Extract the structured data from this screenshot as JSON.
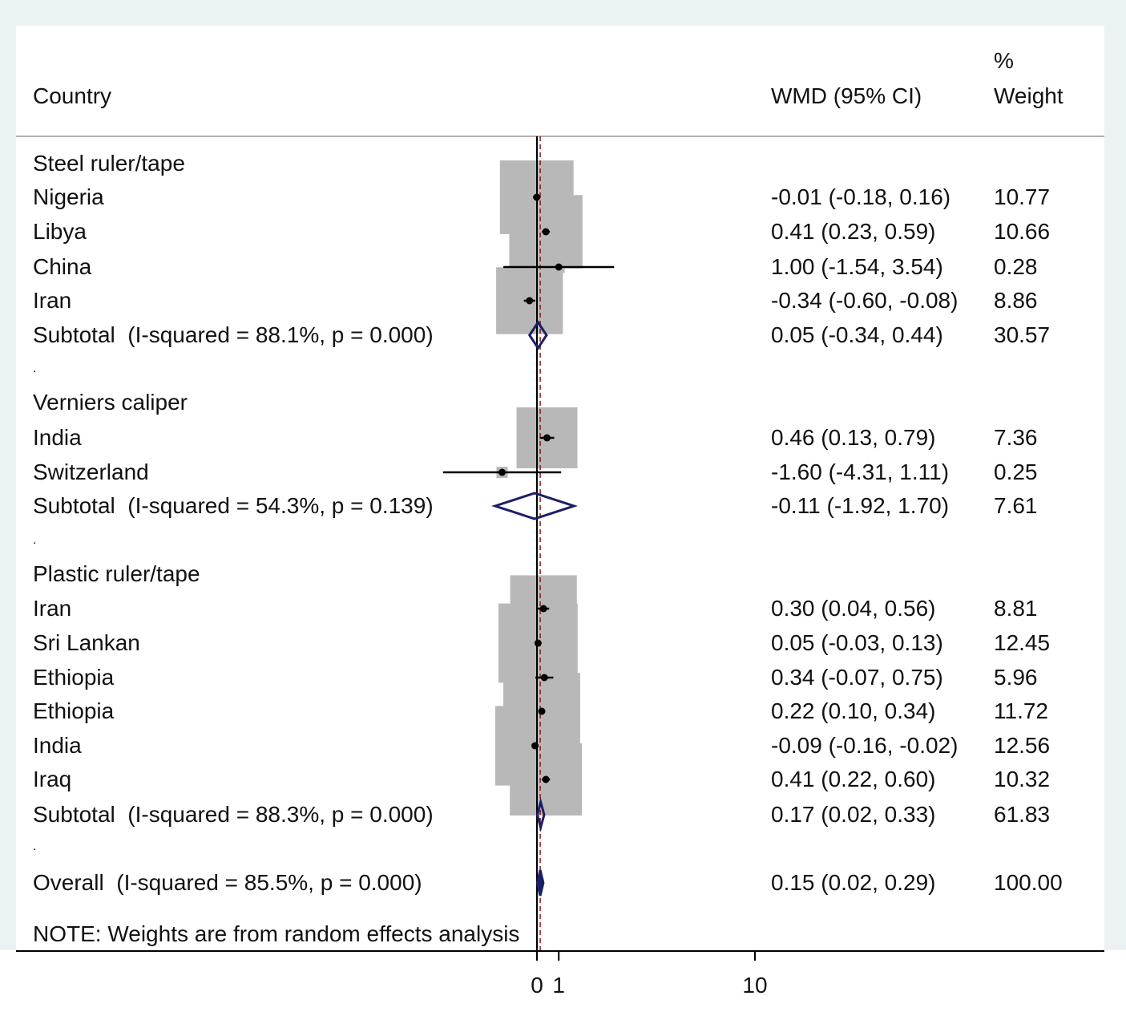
{
  "header": {
    "country_label": "Country",
    "wmd_label": "WMD (95% CI)",
    "weight_label_top": "%",
    "weight_label_bottom": "Weight"
  },
  "note": "NOTE: Weights are from random effects analysis",
  "colors": {
    "weight_box": "#b8b8b8",
    "diamond": "#1a1f66",
    "null_line": "#000000",
    "overall_line": "#8b1a1a",
    "background": "#eaf2f3"
  },
  "chart_data": {
    "type": "forest",
    "xlabel": "",
    "x_ticks": [
      "0",
      "1",
      "10"
    ],
    "x_scale": "linear",
    "rows": [
      {
        "kind": "group",
        "label": "Steel ruler/tape"
      },
      {
        "kind": "study",
        "label": "Nigeria",
        "est": -0.01,
        "lo": -0.18,
        "hi": 0.16,
        "ci_text": "-0.01 (-0.18, 0.16)",
        "weight": 10.77,
        "weight_text": "10.77"
      },
      {
        "kind": "study",
        "label": "Libya",
        "est": 0.41,
        "lo": 0.23,
        "hi": 0.59,
        "ci_text": "0.41 (0.23, 0.59)",
        "weight": 10.66,
        "weight_text": "10.66"
      },
      {
        "kind": "study",
        "label": "China",
        "est": 1.0,
        "lo": -1.54,
        "hi": 3.54,
        "ci_text": "1.00 (-1.54, 3.54)",
        "weight": 0.28,
        "weight_text": "0.28"
      },
      {
        "kind": "study",
        "label": "Iran",
        "est": -0.34,
        "lo": -0.6,
        "hi": -0.08,
        "ci_text": "-0.34 (-0.60, -0.08)",
        "weight": 8.86,
        "weight_text": "8.86"
      },
      {
        "kind": "subtotal",
        "label": "Subtotal  (I-squared = 88.1%, p = 0.000)",
        "est": 0.05,
        "lo": -0.34,
        "hi": 0.44,
        "ci_text": "0.05 (-0.34, 0.44)",
        "weight": 30.57,
        "weight_text": "30.57"
      },
      {
        "kind": "spacer",
        "label": "."
      },
      {
        "kind": "group",
        "label": "Verniers caliper"
      },
      {
        "kind": "study",
        "label": "India",
        "est": 0.46,
        "lo": 0.13,
        "hi": 0.79,
        "ci_text": "0.46 (0.13, 0.79)",
        "weight": 7.36,
        "weight_text": "7.36"
      },
      {
        "kind": "study",
        "label": "Switzerland",
        "est": -1.6,
        "lo": -4.31,
        "hi": 1.11,
        "ci_text": "-1.60 (-4.31, 1.11)",
        "weight": 0.25,
        "weight_text": "0.25"
      },
      {
        "kind": "subtotal",
        "label": "Subtotal  (I-squared = 54.3%, p = 0.139)",
        "est": -0.11,
        "lo": -1.92,
        "hi": 1.7,
        "ci_text": "-0.11 (-1.92, 1.70)",
        "weight": 7.61,
        "weight_text": "7.61"
      },
      {
        "kind": "spacer",
        "label": "."
      },
      {
        "kind": "group",
        "label": "Plastic ruler/tape"
      },
      {
        "kind": "study",
        "label": "Iran",
        "est": 0.3,
        "lo": 0.04,
        "hi": 0.56,
        "ci_text": "0.30 (0.04, 0.56)",
        "weight": 8.81,
        "weight_text": "8.81"
      },
      {
        "kind": "study",
        "label": "Sri Lankan",
        "est": 0.05,
        "lo": -0.03,
        "hi": 0.13,
        "ci_text": "0.05 (-0.03, 0.13)",
        "weight": 12.45,
        "weight_text": "12.45"
      },
      {
        "kind": "study",
        "label": "Ethiopia",
        "est": 0.34,
        "lo": -0.07,
        "hi": 0.75,
        "ci_text": "0.34 (-0.07, 0.75)",
        "weight": 5.96,
        "weight_text": "5.96"
      },
      {
        "kind": "study",
        "label": "Ethiopia",
        "est": 0.22,
        "lo": 0.1,
        "hi": 0.34,
        "ci_text": "0.22 (0.10, 0.34)",
        "weight": 11.72,
        "weight_text": "11.72"
      },
      {
        "kind": "study",
        "label": "India",
        "est": -0.09,
        "lo": -0.16,
        "hi": -0.02,
        "ci_text": "-0.09 (-0.16, -0.02)",
        "weight": 12.56,
        "weight_text": "12.56"
      },
      {
        "kind": "study",
        "label": "Iraq",
        "est": 0.41,
        "lo": 0.22,
        "hi": 0.6,
        "ci_text": "0.41 (0.22, 0.60)",
        "weight": 10.32,
        "weight_text": "10.32"
      },
      {
        "kind": "subtotal",
        "label": "Subtotal  (I-squared = 88.3%, p = 0.000)",
        "est": 0.17,
        "lo": 0.02,
        "hi": 0.33,
        "ci_text": "0.17 (0.02, 0.33)",
        "weight": 61.83,
        "weight_text": "61.83"
      },
      {
        "kind": "spacer",
        "label": "."
      },
      {
        "kind": "overall",
        "label": "Overall  (I-squared = 85.5%, p = 0.000)",
        "est": 0.15,
        "lo": 0.02,
        "hi": 0.29,
        "ci_text": "0.15 (0.02, 0.29)",
        "weight": 100.0,
        "weight_text": "100.00"
      }
    ]
  }
}
